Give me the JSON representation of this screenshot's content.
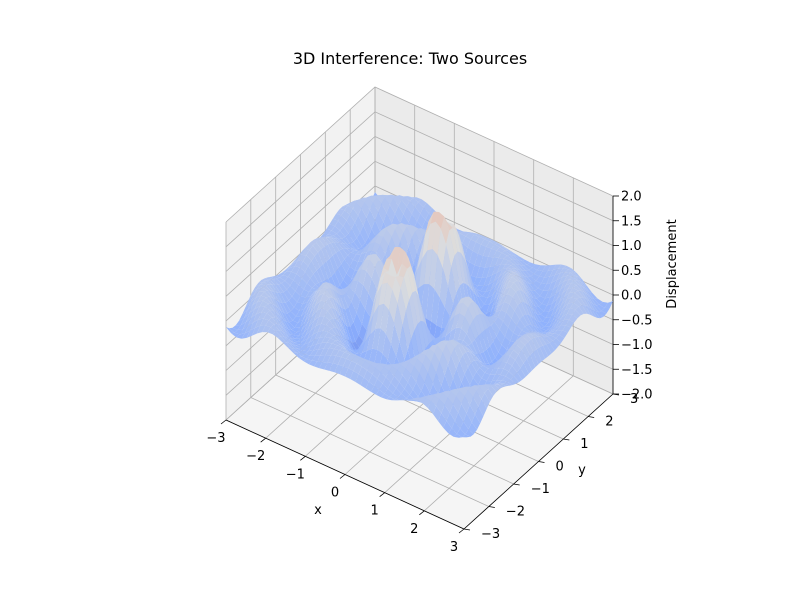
{
  "chart_data": {
    "type": "surface3d",
    "title": "3D Interference: Two Sources",
    "xlabel": "x",
    "ylabel": "y",
    "zlabel": "Displacement",
    "xlim": [
      -3,
      3
    ],
    "ylim": [
      -3,
      3
    ],
    "zlim": [
      -2,
      2
    ],
    "xticks": [
      -3,
      -2,
      -1,
      0,
      1,
      2,
      3
    ],
    "yticks": [
      -3,
      -2,
      -1,
      0,
      1,
      2,
      3
    ],
    "zticks": [
      -2.0,
      -1.5,
      -1.0,
      -0.5,
      0.0,
      0.5,
      1.0,
      1.5,
      2.0
    ],
    "xtick_labels": [
      "−3",
      "−2",
      "−1",
      "0",
      "1",
      "2",
      "3"
    ],
    "ytick_labels": [
      "−3",
      "−2",
      "−1",
      "0",
      "1",
      "2",
      "3"
    ],
    "ztick_labels": [
      "−2.0",
      "−1.5",
      "−1.0",
      "−0.5",
      "0.0",
      "0.5",
      "1.0",
      "1.5",
      "2.0"
    ],
    "sources": [
      {
        "x": 0,
        "y": -1
      },
      {
        "x": 0,
        "y": 1
      }
    ],
    "colormap": "coolwarm",
    "colormap_stops": [
      "#3b4cc0",
      "#8db0fe",
      "#dddddd",
      "#f49a7b",
      "#b40426"
    ],
    "grid": true
  }
}
